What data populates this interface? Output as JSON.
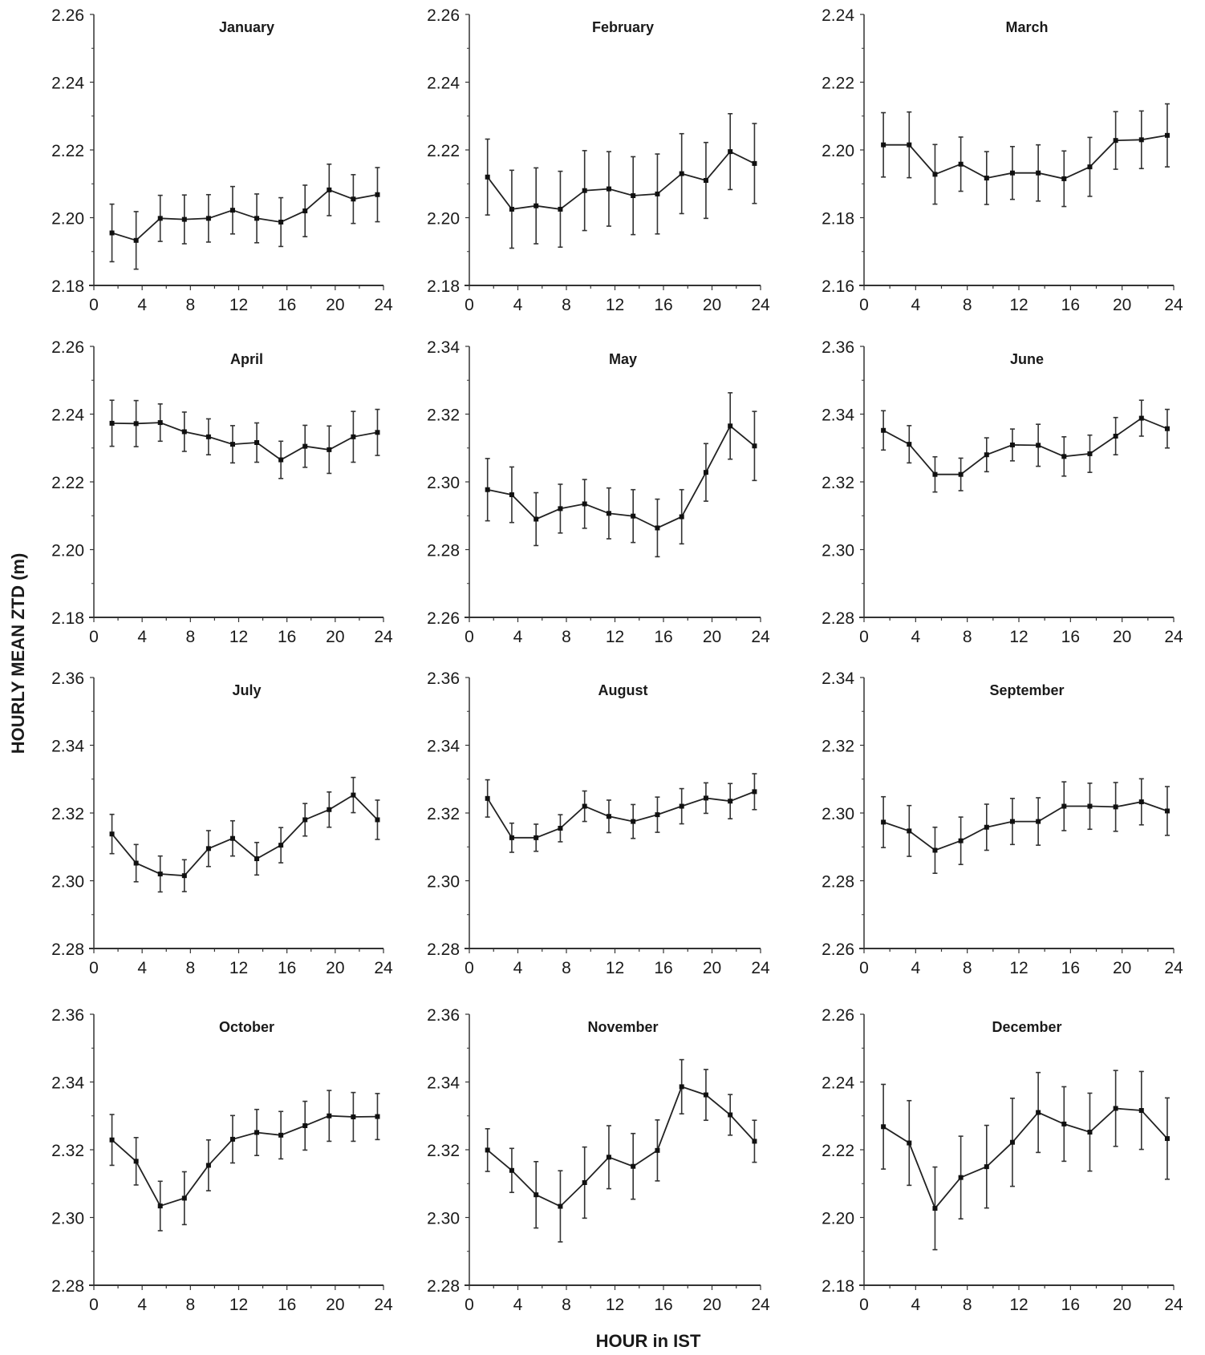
{
  "chart_data": {
    "type": "line",
    "ylabel": "HOURLY MEAN ZTD (m)",
    "xlabel": "HOUR in IST",
    "x": [
      1.5,
      3.5,
      5.5,
      7.5,
      9.5,
      11.5,
      13.5,
      15.5,
      17.5,
      19.5,
      21.5,
      23.5
    ],
    "xlim": [
      0,
      24
    ],
    "xticks": [
      "0",
      "4",
      "8",
      "12",
      "16",
      "20",
      "24"
    ],
    "grid": false,
    "panels": [
      {
        "title": "January",
        "ylim": [
          2.18,
          2.26
        ],
        "yticks": [
          "2.18",
          "2.20",
          "2.22",
          "2.24",
          "2.26"
        ],
        "values": [
          2.1955,
          2.1933,
          2.1998,
          2.1995,
          2.1998,
          2.2022,
          2.1998,
          2.1987,
          2.202,
          2.2082,
          2.2055,
          2.2068
        ],
        "error": [
          0.0085,
          0.0085,
          0.0068,
          0.0072,
          0.007,
          0.007,
          0.0072,
          0.0072,
          0.0076,
          0.0076,
          0.0072,
          0.008
        ]
      },
      {
        "title": "February",
        "ylim": [
          2.18,
          2.26
        ],
        "yticks": [
          "2.18",
          "2.20",
          "2.22",
          "2.24",
          "2.26"
        ],
        "values": [
          2.212,
          2.2025,
          2.2035,
          2.2025,
          2.208,
          2.2085,
          2.2065,
          2.207,
          2.213,
          2.211,
          2.2195,
          2.216
        ],
        "error": [
          0.0112,
          0.0115,
          0.0112,
          0.0112,
          0.0118,
          0.011,
          0.0115,
          0.0118,
          0.0118,
          0.0112,
          0.0112,
          0.0118
        ]
      },
      {
        "title": "March",
        "ylim": [
          2.16,
          2.24
        ],
        "yticks": [
          "2.16",
          "2.18",
          "2.20",
          "2.22",
          "2.24"
        ],
        "values": [
          2.2015,
          2.2015,
          2.1928,
          2.1958,
          2.1917,
          2.1932,
          2.1932,
          2.1915,
          2.195,
          2.2028,
          2.203,
          2.2043
        ],
        "error": [
          0.0095,
          0.0097,
          0.0088,
          0.008,
          0.0078,
          0.0078,
          0.0083,
          0.0082,
          0.0087,
          0.0085,
          0.0085,
          0.0093
        ]
      },
      {
        "title": "April",
        "ylim": [
          2.18,
          2.26
        ],
        "yticks": [
          "2.18",
          "2.20",
          "2.22",
          "2.24",
          "2.26"
        ],
        "values": [
          2.2373,
          2.2372,
          2.2375,
          2.2348,
          2.2333,
          2.2311,
          2.2316,
          2.2265,
          2.2305,
          2.2295,
          2.2333,
          2.2346
        ],
        "error": [
          0.0068,
          0.0068,
          0.0055,
          0.0058,
          0.0053,
          0.0055,
          0.0058,
          0.0055,
          0.0062,
          0.007,
          0.0075,
          0.0068
        ]
      },
      {
        "title": "May",
        "ylim": [
          2.26,
          2.34
        ],
        "yticks": [
          "2.26",
          "2.28",
          "2.30",
          "2.32",
          "2.34"
        ],
        "values": [
          2.2977,
          2.2962,
          2.289,
          2.2921,
          2.2935,
          2.2907,
          2.2899,
          2.2864,
          2.2897,
          2.3028,
          2.3165,
          2.3106
        ],
        "error": [
          0.0092,
          0.0082,
          0.0078,
          0.0072,
          0.0072,
          0.0075,
          0.0078,
          0.0085,
          0.008,
          0.0085,
          0.0098,
          0.0102
        ]
      },
      {
        "title": "June",
        "ylim": [
          2.28,
          2.36
        ],
        "yticks": [
          "2.28",
          "2.30",
          "2.32",
          "2.34",
          "2.36"
        ],
        "values": [
          2.3352,
          2.3311,
          2.3222,
          2.3222,
          2.328,
          2.3309,
          2.3308,
          2.3275,
          2.3283,
          2.3335,
          2.3388,
          2.3357
        ],
        "error": [
          0.0058,
          0.0055,
          0.0052,
          0.0048,
          0.005,
          0.0047,
          0.0062,
          0.0058,
          0.0055,
          0.0055,
          0.0053,
          0.0057
        ]
      },
      {
        "title": "July",
        "ylim": [
          2.28,
          2.36
        ],
        "yticks": [
          "2.28",
          "2.30",
          "2.32",
          "2.34",
          "2.36"
        ],
        "values": [
          2.3138,
          2.3052,
          2.302,
          2.3015,
          2.3095,
          2.3125,
          2.3065,
          2.3105,
          2.318,
          2.321,
          2.3253,
          2.318
        ],
        "error": [
          0.0058,
          0.0055,
          0.0053,
          0.0047,
          0.0053,
          0.0052,
          0.0048,
          0.0052,
          0.0048,
          0.0052,
          0.0052,
          0.0058
        ]
      },
      {
        "title": "August",
        "ylim": [
          2.28,
          2.36
        ],
        "yticks": [
          "2.28",
          "2.30",
          "2.32",
          "2.34",
          "2.36"
        ],
        "values": [
          2.3243,
          2.3127,
          2.3127,
          2.3155,
          2.322,
          2.319,
          2.3175,
          2.3195,
          2.322,
          2.3244,
          2.3235,
          2.3263
        ],
        "error": [
          0.0055,
          0.0043,
          0.004,
          0.004,
          0.0045,
          0.0048,
          0.005,
          0.0052,
          0.0052,
          0.0045,
          0.0052,
          0.0053
        ]
      },
      {
        "title": "September",
        "ylim": [
          2.26,
          2.34
        ],
        "yticks": [
          "2.26",
          "2.28",
          "2.30",
          "2.32",
          "2.34"
        ],
        "values": [
          2.2973,
          2.2947,
          2.289,
          2.2918,
          2.2958,
          2.2975,
          2.2975,
          2.302,
          2.302,
          2.3018,
          2.3033,
          2.3006
        ],
        "error": [
          0.0075,
          0.0075,
          0.0068,
          0.007,
          0.0068,
          0.0068,
          0.007,
          0.0072,
          0.0068,
          0.0072,
          0.0068,
          0.0072
        ]
      },
      {
        "title": "October",
        "ylim": [
          2.28,
          2.36
        ],
        "yticks": [
          "2.28",
          "2.30",
          "2.32",
          "2.34",
          "2.36"
        ],
        "values": [
          2.3229,
          2.3166,
          2.3034,
          2.3057,
          2.3154,
          2.3231,
          2.3251,
          2.3243,
          2.3271,
          2.33,
          2.3297,
          2.3298
        ],
        "error": [
          0.0075,
          0.007,
          0.0073,
          0.0078,
          0.0075,
          0.007,
          0.0068,
          0.007,
          0.0072,
          0.0075,
          0.0072,
          0.0068
        ]
      },
      {
        "title": "November",
        "ylim": [
          2.28,
          2.36
        ],
        "yticks": [
          "2.28",
          "2.30",
          "2.32",
          "2.34",
          "2.36"
        ],
        "values": [
          2.3199,
          2.3139,
          2.3067,
          2.3033,
          2.3103,
          2.3178,
          2.3151,
          2.3198,
          2.3386,
          2.3362,
          2.3303,
          2.3225
        ],
        "error": [
          0.0063,
          0.0065,
          0.0098,
          0.0105,
          0.0105,
          0.0093,
          0.0097,
          0.009,
          0.008,
          0.0075,
          0.006,
          0.0062
        ]
      },
      {
        "title": "December",
        "ylim": [
          2.18,
          2.26
        ],
        "yticks": [
          "2.18",
          "2.20",
          "2.22",
          "2.24",
          "2.26"
        ],
        "values": [
          2.2268,
          2.222,
          2.2027,
          2.2118,
          2.215,
          2.2222,
          2.231,
          2.2276,
          2.2252,
          2.2322,
          2.2316,
          2.2233
        ],
        "error": [
          0.0125,
          0.0125,
          0.0122,
          0.0122,
          0.0122,
          0.013,
          0.0118,
          0.011,
          0.0115,
          0.0112,
          0.0115,
          0.012
        ]
      }
    ]
  }
}
